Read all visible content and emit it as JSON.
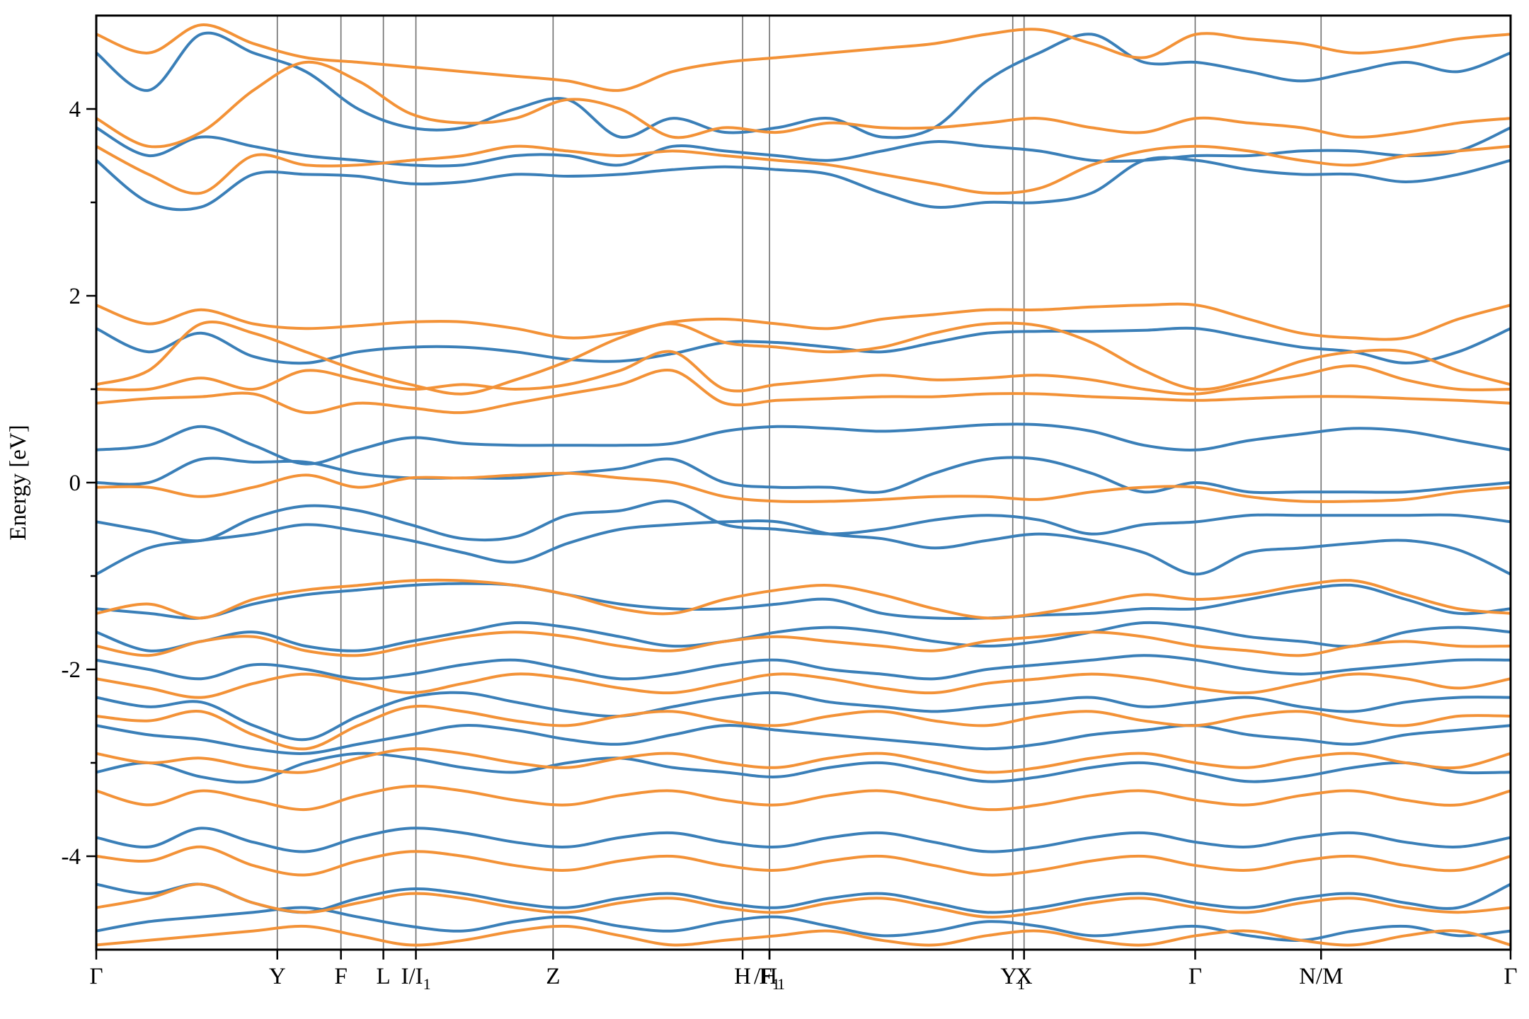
{
  "chart_data": {
    "type": "line",
    "title": "",
    "xlabel": "",
    "ylabel": "Energy [eV]",
    "ylim": [
      -5,
      5
    ],
    "y_ticks": [
      {
        "value": 4,
        "label": "4"
      },
      {
        "value": 2,
        "label": "2"
      },
      {
        "value": 0,
        "label": "0"
      },
      {
        "value": -2,
        "label": "-2"
      },
      {
        "value": -4,
        "label": "-4"
      }
    ],
    "k_points": [
      {
        "x": 0.0,
        "label": "Γ",
        "sub": ""
      },
      {
        "x": 0.128,
        "label": "Y",
        "sub": ""
      },
      {
        "x": 0.173,
        "label": "F",
        "sub": ""
      },
      {
        "x": 0.203,
        "label": "L",
        "sub": ""
      },
      {
        "x": 0.226,
        "label": "I/I",
        "sub": "1"
      },
      {
        "x": 0.323,
        "label": "Z",
        "sub": ""
      },
      {
        "x": 0.457,
        "label": "H",
        "sub": ""
      },
      {
        "x": 0.476,
        "label": "F",
        "sub": "1"
      },
      {
        "x": 0.476,
        "label": "/H",
        "sub": "1"
      },
      {
        "x": 0.648,
        "label": "Y",
        "sub": "1"
      },
      {
        "x": 0.656,
        "label": "X",
        "sub": ""
      },
      {
        "x": 0.777,
        "label": "Γ",
        "sub": ""
      },
      {
        "x": 0.866,
        "label": "N/M",
        "sub": ""
      },
      {
        "x": 1.0,
        "label": "Γ",
        "sub": ""
      }
    ],
    "grid": false,
    "legend": "none",
    "series": [
      {
        "color": "#3a7fb8",
        "bands": [
          [
            -0.98,
            -0.7,
            -0.62,
            -0.55,
            -0.45,
            -0.52,
            -0.62,
            -0.75,
            -0.85,
            -0.65,
            -0.5,
            -0.45,
            -0.42,
            -0.42,
            -0.55,
            -0.6,
            -0.7,
            -0.62,
            -0.55,
            -0.62,
            -0.75,
            -0.98,
            -0.75,
            -0.7,
            -0.65,
            -0.62,
            -0.72,
            -0.98
          ],
          [
            -0.42,
            -0.52,
            -0.62,
            -0.38,
            -0.25,
            -0.3,
            -0.45,
            -0.6,
            -0.58,
            -0.35,
            -0.3,
            -0.2,
            -0.45,
            -0.5,
            -0.55,
            -0.5,
            -0.4,
            -0.35,
            -0.4,
            -0.55,
            -0.45,
            -0.42,
            -0.35,
            -0.35,
            -0.35,
            -0.35,
            -0.35,
            -0.42
          ],
          [
            0.35,
            0.4,
            0.6,
            0.4,
            0.2,
            0.35,
            0.48,
            0.42,
            0.4,
            0.4,
            0.4,
            0.42,
            0.55,
            0.6,
            0.58,
            0.55,
            0.58,
            0.62,
            0.62,
            0.55,
            0.4,
            0.35,
            0.45,
            0.52,
            0.58,
            0.55,
            0.45,
            0.35
          ],
          [
            0.0,
            0.0,
            0.25,
            0.22,
            0.22,
            0.1,
            0.05,
            0.05,
            0.05,
            0.1,
            0.15,
            0.25,
            0.0,
            -0.05,
            -0.05,
            -0.1,
            0.1,
            0.25,
            0.25,
            0.1,
            -0.1,
            0.0,
            -0.1,
            -0.1,
            -0.1,
            -0.1,
            -0.05,
            0.0
          ],
          [
            1.65,
            1.4,
            1.6,
            1.35,
            1.28,
            1.4,
            1.45,
            1.45,
            1.4,
            1.32,
            1.3,
            1.38,
            1.5,
            1.5,
            1.45,
            1.4,
            1.5,
            1.6,
            1.62,
            1.62,
            1.63,
            1.65,
            1.55,
            1.45,
            1.4,
            1.28,
            1.4,
            1.65
          ],
          [
            3.45,
            3.0,
            2.95,
            3.3,
            3.3,
            3.28,
            3.2,
            3.22,
            3.3,
            3.28,
            3.3,
            3.35,
            3.38,
            3.35,
            3.3,
            3.1,
            2.95,
            3.0,
            3.0,
            3.1,
            3.45,
            3.45,
            3.35,
            3.3,
            3.3,
            3.22,
            3.3,
            3.45
          ],
          [
            3.8,
            3.5,
            3.7,
            3.6,
            3.5,
            3.45,
            3.4,
            3.4,
            3.5,
            3.5,
            3.4,
            3.6,
            3.55,
            3.5,
            3.45,
            3.55,
            3.65,
            3.6,
            3.55,
            3.45,
            3.45,
            3.5,
            3.5,
            3.55,
            3.55,
            3.5,
            3.55,
            3.8
          ],
          [
            4.6,
            4.2,
            4.8,
            4.6,
            4.4,
            4.0,
            3.8,
            3.8,
            4.0,
            4.1,
            3.7,
            3.9,
            3.75,
            3.8,
            3.9,
            3.7,
            3.8,
            4.3,
            4.6,
            4.8,
            4.5,
            4.5,
            4.4,
            4.3,
            4.4,
            4.5,
            4.4,
            4.6
          ],
          [
            -1.35,
            -1.4,
            -1.45,
            -1.3,
            -1.2,
            -1.15,
            -1.1,
            -1.08,
            -1.1,
            -1.2,
            -1.3,
            -1.35,
            -1.35,
            -1.3,
            -1.25,
            -1.4,
            -1.45,
            -1.45,
            -1.42,
            -1.4,
            -1.35,
            -1.35,
            -1.25,
            -1.15,
            -1.1,
            -1.25,
            -1.4,
            -1.35
          ],
          [
            -1.6,
            -1.8,
            -1.7,
            -1.6,
            -1.75,
            -1.8,
            -1.7,
            -1.6,
            -1.5,
            -1.55,
            -1.65,
            -1.75,
            -1.7,
            -1.6,
            -1.55,
            -1.6,
            -1.7,
            -1.75,
            -1.7,
            -1.6,
            -1.5,
            -1.55,
            -1.65,
            -1.7,
            -1.75,
            -1.6,
            -1.55,
            -1.6
          ],
          [
            -1.9,
            -2.0,
            -2.1,
            -1.95,
            -2.0,
            -2.1,
            -2.05,
            -1.95,
            -1.9,
            -2.0,
            -2.1,
            -2.05,
            -1.95,
            -1.9,
            -2.0,
            -2.05,
            -2.1,
            -2.0,
            -1.95,
            -1.9,
            -1.85,
            -1.9,
            -2.0,
            -2.05,
            -2.0,
            -1.95,
            -1.9,
            -1.9
          ],
          [
            -2.3,
            -2.4,
            -2.35,
            -2.6,
            -2.75,
            -2.5,
            -2.3,
            -2.25,
            -2.35,
            -2.45,
            -2.5,
            -2.4,
            -2.3,
            -2.25,
            -2.35,
            -2.4,
            -2.45,
            -2.4,
            -2.35,
            -2.3,
            -2.4,
            -2.35,
            -2.3,
            -2.4,
            -2.45,
            -2.35,
            -2.3,
            -2.3
          ],
          [
            -2.6,
            -2.7,
            -2.75,
            -2.85,
            -2.9,
            -2.8,
            -2.7,
            -2.6,
            -2.65,
            -2.75,
            -2.8,
            -2.7,
            -2.6,
            -2.65,
            -2.7,
            -2.75,
            -2.8,
            -2.85,
            -2.8,
            -2.7,
            -2.65,
            -2.6,
            -2.7,
            -2.75,
            -2.8,
            -2.7,
            -2.65,
            -2.6
          ],
          [
            -3.1,
            -3.0,
            -3.15,
            -3.2,
            -3.0,
            -2.9,
            -2.95,
            -3.05,
            -3.1,
            -3.0,
            -2.95,
            -3.05,
            -3.1,
            -3.15,
            -3.05,
            -3.0,
            -3.1,
            -3.2,
            -3.15,
            -3.05,
            -3.0,
            -3.1,
            -3.2,
            -3.15,
            -3.05,
            -3.0,
            -3.1,
            -3.1
          ],
          [
            -3.8,
            -3.9,
            -3.7,
            -3.85,
            -3.95,
            -3.8,
            -3.7,
            -3.75,
            -3.85,
            -3.9,
            -3.8,
            -3.75,
            -3.85,
            -3.9,
            -3.8,
            -3.75,
            -3.85,
            -3.95,
            -3.9,
            -3.8,
            -3.75,
            -3.85,
            -3.9,
            -3.8,
            -3.75,
            -3.85,
            -3.9,
            -3.8
          ],
          [
            -4.3,
            -4.4,
            -4.3,
            -4.5,
            -4.6,
            -4.45,
            -4.35,
            -4.4,
            -4.5,
            -4.55,
            -4.45,
            -4.4,
            -4.5,
            -4.55,
            -4.45,
            -4.4,
            -4.5,
            -4.6,
            -4.55,
            -4.45,
            -4.4,
            -4.5,
            -4.55,
            -4.45,
            -4.4,
            -4.5,
            -4.55,
            -4.3
          ],
          [
            -4.8,
            -4.7,
            -4.65,
            -4.6,
            -4.55,
            -4.65,
            -4.75,
            -4.8,
            -4.7,
            -4.65,
            -4.75,
            -4.8,
            -4.7,
            -4.65,
            -4.75,
            -4.85,
            -4.8,
            -4.7,
            -4.75,
            -4.85,
            -4.8,
            -4.75,
            -4.85,
            -4.9,
            -4.8,
            -4.75,
            -4.85,
            -4.8
          ]
        ]
      },
      {
        "color": "#f39237",
        "bands": [
          [
            -0.05,
            -0.05,
            -0.15,
            -0.05,
            0.08,
            -0.05,
            0.05,
            0.05,
            0.08,
            0.1,
            0.05,
            0.0,
            -0.15,
            -0.2,
            -0.2,
            -0.18,
            -0.15,
            -0.15,
            -0.18,
            -0.1,
            -0.05,
            -0.05,
            -0.15,
            -0.2,
            -0.2,
            -0.18,
            -0.1,
            -0.05
          ],
          [
            0.85,
            0.9,
            0.92,
            0.95,
            0.75,
            0.85,
            0.8,
            0.75,
            0.85,
            0.95,
            1.05,
            1.2,
            0.85,
            0.88,
            0.9,
            0.92,
            0.92,
            0.95,
            0.95,
            0.92,
            0.9,
            0.88,
            0.9,
            0.92,
            0.92,
            0.9,
            0.88,
            0.85
          ],
          [
            1.0,
            1.0,
            1.12,
            1.0,
            1.2,
            1.1,
            1.0,
            1.05,
            1.0,
            1.05,
            1.2,
            1.4,
            1.0,
            1.05,
            1.1,
            1.15,
            1.1,
            1.12,
            1.15,
            1.1,
            1.0,
            0.95,
            1.05,
            1.15,
            1.25,
            1.1,
            1.0,
            1.0
          ],
          [
            1.9,
            1.7,
            1.85,
            1.7,
            1.65,
            1.68,
            1.72,
            1.72,
            1.65,
            1.55,
            1.6,
            1.72,
            1.75,
            1.7,
            1.65,
            1.75,
            1.8,
            1.85,
            1.85,
            1.88,
            1.9,
            1.9,
            1.75,
            1.6,
            1.55,
            1.55,
            1.75,
            1.9
          ],
          [
            1.05,
            1.2,
            1.7,
            1.6,
            1.4,
            1.2,
            1.05,
            0.95,
            1.1,
            1.3,
            1.55,
            1.7,
            1.5,
            1.45,
            1.4,
            1.45,
            1.6,
            1.7,
            1.68,
            1.5,
            1.2,
            1.0,
            1.1,
            1.3,
            1.4,
            1.4,
            1.2,
            1.05
          ],
          [
            3.6,
            3.3,
            3.1,
            3.5,
            3.4,
            3.4,
            3.45,
            3.5,
            3.6,
            3.55,
            3.5,
            3.55,
            3.5,
            3.45,
            3.4,
            3.3,
            3.2,
            3.1,
            3.15,
            3.4,
            3.55,
            3.6,
            3.55,
            3.45,
            3.4,
            3.5,
            3.55,
            3.6
          ],
          [
            3.9,
            3.6,
            3.75,
            4.2,
            4.5,
            4.3,
            3.95,
            3.85,
            3.9,
            4.1,
            4.0,
            3.7,
            3.8,
            3.75,
            3.85,
            3.8,
            3.8,
            3.85,
            3.9,
            3.8,
            3.75,
            3.9,
            3.85,
            3.8,
            3.7,
            3.75,
            3.85,
            3.9
          ],
          [
            4.8,
            4.6,
            4.9,
            4.7,
            4.55,
            4.5,
            4.45,
            4.4,
            4.35,
            4.3,
            4.2,
            4.4,
            4.5,
            4.55,
            4.6,
            4.65,
            4.7,
            4.8,
            4.85,
            4.7,
            4.55,
            4.8,
            4.75,
            4.7,
            4.6,
            4.65,
            4.75,
            4.8
          ],
          [
            -1.4,
            -1.3,
            -1.45,
            -1.25,
            -1.15,
            -1.1,
            -1.05,
            -1.05,
            -1.1,
            -1.2,
            -1.35,
            -1.4,
            -1.25,
            -1.15,
            -1.1,
            -1.2,
            -1.35,
            -1.45,
            -1.4,
            -1.3,
            -1.2,
            -1.25,
            -1.2,
            -1.1,
            -1.05,
            -1.2,
            -1.35,
            -1.4
          ],
          [
            -1.75,
            -1.85,
            -1.7,
            -1.65,
            -1.8,
            -1.85,
            -1.75,
            -1.65,
            -1.6,
            -1.65,
            -1.75,
            -1.8,
            -1.7,
            -1.65,
            -1.7,
            -1.75,
            -1.8,
            -1.7,
            -1.65,
            -1.6,
            -1.65,
            -1.75,
            -1.8,
            -1.85,
            -1.75,
            -1.7,
            -1.75,
            -1.75
          ],
          [
            -2.1,
            -2.2,
            -2.3,
            -2.15,
            -2.05,
            -2.15,
            -2.25,
            -2.15,
            -2.05,
            -2.1,
            -2.2,
            -2.25,
            -2.15,
            -2.05,
            -2.1,
            -2.2,
            -2.25,
            -2.15,
            -2.1,
            -2.05,
            -2.1,
            -2.2,
            -2.25,
            -2.15,
            -2.05,
            -2.1,
            -2.2,
            -2.1
          ],
          [
            -2.5,
            -2.55,
            -2.45,
            -2.7,
            -2.85,
            -2.6,
            -2.4,
            -2.45,
            -2.55,
            -2.6,
            -2.5,
            -2.45,
            -2.55,
            -2.6,
            -2.5,
            -2.45,
            -2.55,
            -2.6,
            -2.5,
            -2.45,
            -2.55,
            -2.6,
            -2.5,
            -2.45,
            -2.55,
            -2.6,
            -2.5,
            -2.5
          ],
          [
            -2.9,
            -3.0,
            -2.95,
            -3.05,
            -3.1,
            -2.95,
            -2.85,
            -2.9,
            -3.0,
            -3.05,
            -2.95,
            -2.9,
            -3.0,
            -3.05,
            -2.95,
            -2.9,
            -3.0,
            -3.1,
            -3.05,
            -2.95,
            -2.9,
            -3.0,
            -3.05,
            -2.95,
            -2.9,
            -3.0,
            -3.05,
            -2.9
          ],
          [
            -3.3,
            -3.45,
            -3.3,
            -3.4,
            -3.5,
            -3.35,
            -3.25,
            -3.3,
            -3.4,
            -3.45,
            -3.35,
            -3.3,
            -3.4,
            -3.45,
            -3.35,
            -3.3,
            -3.4,
            -3.5,
            -3.45,
            -3.35,
            -3.3,
            -3.4,
            -3.45,
            -3.35,
            -3.3,
            -3.4,
            -3.45,
            -3.3
          ],
          [
            -4.0,
            -4.05,
            -3.9,
            -4.1,
            -4.2,
            -4.05,
            -3.95,
            -4.0,
            -4.1,
            -4.15,
            -4.05,
            -4.0,
            -4.1,
            -4.15,
            -4.05,
            -4.0,
            -4.1,
            -4.2,
            -4.15,
            -4.05,
            -4.0,
            -4.1,
            -4.15,
            -4.05,
            -4.0,
            -4.1,
            -4.15,
            -4.0
          ],
          [
            -4.55,
            -4.45,
            -4.3,
            -4.5,
            -4.6,
            -4.5,
            -4.4,
            -4.45,
            -4.55,
            -4.6,
            -4.5,
            -4.45,
            -4.55,
            -4.6,
            -4.5,
            -4.45,
            -4.55,
            -4.65,
            -4.6,
            -4.5,
            -4.45,
            -4.55,
            -4.6,
            -4.5,
            -4.45,
            -4.55,
            -4.6,
            -4.55
          ],
          [
            -4.95,
            -4.9,
            -4.85,
            -4.8,
            -4.75,
            -4.85,
            -4.95,
            -4.9,
            -4.8,
            -4.75,
            -4.85,
            -4.95,
            -4.9,
            -4.85,
            -4.8,
            -4.9,
            -4.95,
            -4.85,
            -4.8,
            -4.9,
            -4.95,
            -4.85,
            -4.8,
            -4.9,
            -4.95,
            -4.85,
            -4.8,
            -4.95
          ]
        ]
      }
    ]
  }
}
